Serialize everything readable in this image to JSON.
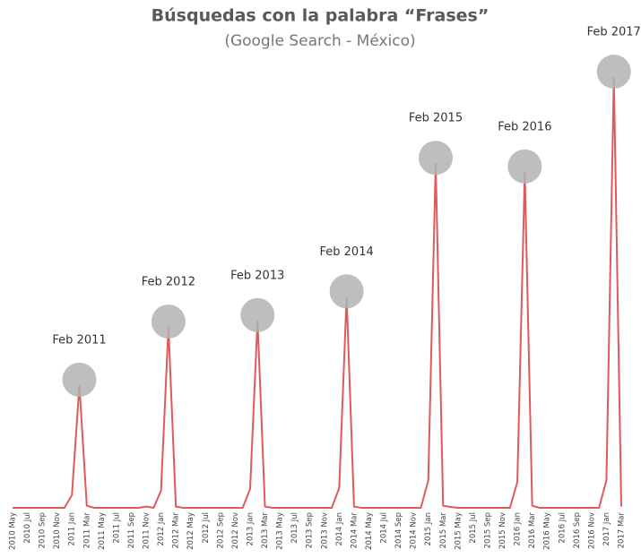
{
  "chart_data": {
    "type": "line",
    "title": "Búsquedas con la palabra “Frases”",
    "subtitle": "(Google Search - México)",
    "categories": [
      "2010 May",
      null,
      "2010 Jul",
      null,
      "2010 Sep",
      null,
      "2010 Nov",
      null,
      "2011 Jan",
      null,
      "2011 Mar",
      null,
      "2011 May",
      null,
      "2011 Jul",
      null,
      "2011 Sep",
      null,
      "2011 Nov",
      null,
      "2012 Jan",
      null,
      "2012 Mar",
      null,
      "2012 May",
      null,
      "2012 Jul",
      null,
      "2012 Sep",
      null,
      "2012 Nov",
      null,
      "2013 Jan",
      null,
      "2013 Mar",
      null,
      "2013 May",
      null,
      "2013 Jul",
      null,
      "2013 Sep",
      null,
      "2013 Nov",
      null,
      "2014 Jan",
      null,
      "2014 Mar",
      null,
      "2014 May",
      null,
      "2014 Jul",
      null,
      "2014 Sep",
      null,
      "2014 Nov",
      null,
      "2015 Jan",
      null,
      "2015 Mar",
      null,
      "2015 May",
      null,
      "2015 Jul",
      null,
      "2015 Sep",
      null,
      "2015 Nov",
      null,
      "2016 Jan",
      null,
      "2016 Mar",
      null,
      "2016 May",
      null,
      "2016 Jul",
      null,
      "2016 Sep",
      null,
      "2016 Nov",
      null,
      "2017 Jan",
      null,
      "2017 Mar"
    ],
    "values": [
      0,
      0,
      0,
      0,
      0,
      0,
      0,
      0,
      3,
      28.5,
      0.5,
      0,
      0,
      0,
      0,
      0,
      0,
      0,
      0.3,
      0,
      4,
      42,
      0.3,
      0,
      0,
      0,
      0,
      0,
      0,
      0,
      0,
      0,
      4.4,
      43.5,
      0.3,
      0,
      0,
      0,
      0,
      0,
      0,
      0,
      0,
      0,
      4.6,
      49,
      0.3,
      0,
      0,
      0,
      0,
      0,
      0,
      0,
      0,
      0,
      6.4,
      80,
      0.5,
      0.2,
      0,
      0,
      0,
      0,
      0,
      0,
      0,
      0,
      6,
      78,
      0.5,
      0,
      0,
      0,
      0,
      0,
      0,
      0,
      0,
      0,
      6.4,
      100,
      0.3
    ],
    "color": "#e05a5a",
    "ylim": [
      0,
      100
    ],
    "annotations": [
      "Feb 2011",
      "Feb 2012",
      "Feb 2013",
      "Feb 2014",
      "Feb 2015",
      "Feb 2016",
      "Feb 2017"
    ]
  }
}
